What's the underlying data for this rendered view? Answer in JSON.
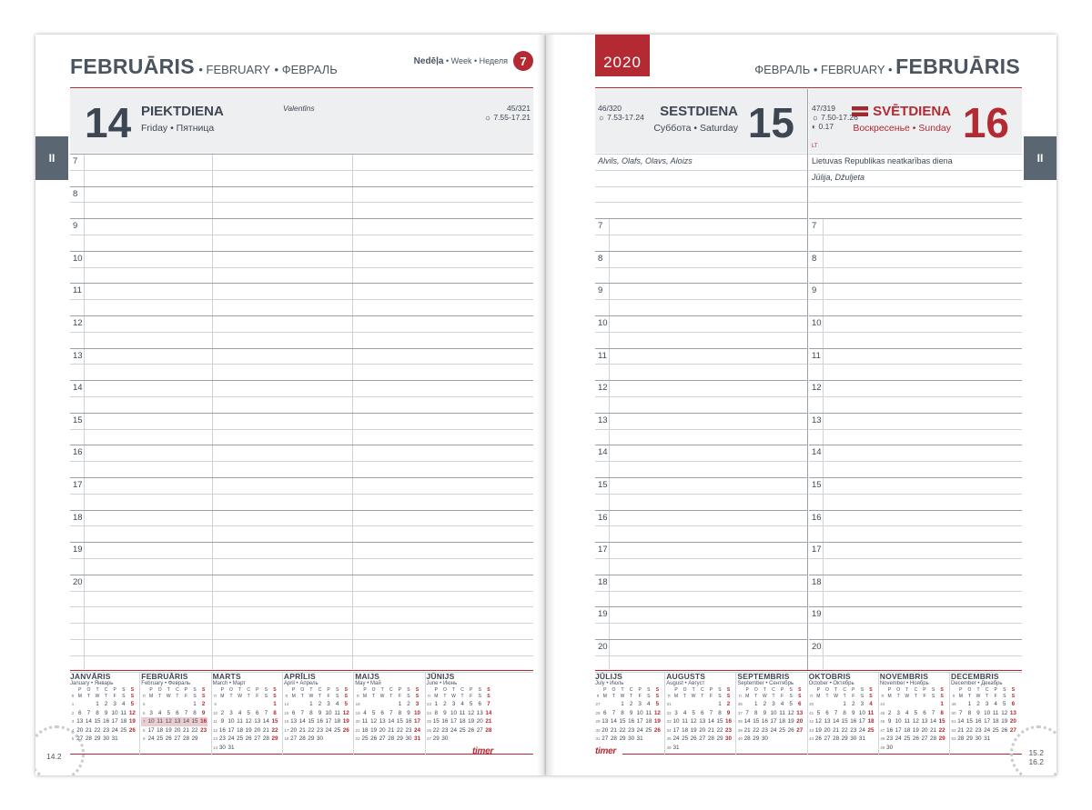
{
  "left": {
    "month_lv": "FEBRUĀRIS",
    "month_en": "FEBRUARY",
    "month_ru": "ФЕВРАЛЬ",
    "week_lv": "Nedēļa",
    "week_en": "Week",
    "week_ru": "Неделя",
    "week_num": "7",
    "tab": "II",
    "day": {
      "number": "14",
      "name": "PIEKTDIENA",
      "sub": "Friday • Пятница",
      "nameday": "Valentīns",
      "count": "45/321",
      "sun": "7.55-17.21"
    },
    "hours": [
      "7",
      "8",
      "9",
      "10",
      "11",
      "12",
      "13",
      "14",
      "15",
      "16",
      "17",
      "18",
      "19",
      "20"
    ],
    "page_label": "14.2"
  },
  "right": {
    "year": "2020",
    "month_ru": "ФЕВРАЛЬ",
    "month_en": "FEBRUARY",
    "month_lv": "FEBRUĀRIS",
    "tab": "II",
    "day1": {
      "count": "46/320",
      "sun": "7.53-17.24",
      "name": "SESTDIENA",
      "sub": "Суббота • Saturday",
      "number": "15",
      "nameday": "Alvils, Olafs, Olavs, Aloizs"
    },
    "day2": {
      "count": "47/319",
      "sun": "7.50-17.26",
      "moon": "0.17",
      "name": "SVĒTDIENA",
      "sub": "Воскресенье • Sunday",
      "number": "16",
      "country": "LT",
      "holiday": "Lietuvas Republikas neatkarības diena",
      "nameday": "Jūlija, Džuljeta"
    },
    "hours": [
      "7",
      "8",
      "9",
      "10",
      "11",
      "12",
      "13",
      "14",
      "15",
      "16",
      "17",
      "18",
      "19",
      "20"
    ],
    "page_label_1": "15.2",
    "page_label_2": "16.2"
  },
  "logo": "timer",
  "calendar": {
    "weekday_header": [
      "п",
      "о",
      "т",
      "с",
      "ч",
      "п",
      "с"
    ],
    "weekday_header_lv": [
      "M",
      "T",
      "W",
      "T",
      "F",
      "S",
      "S"
    ],
    "weekday_top": [
      "P",
      "O",
      "T",
      "C",
      "P",
      "S",
      "S"
    ],
    "months_left": [
      {
        "name": "JANVĀRIS",
        "sub": "January • Январь",
        "weeks": [
          [
            "1",
            "",
            "",
            "1",
            "2",
            "3",
            "4",
            "5"
          ],
          [
            "2",
            "6",
            "7",
            "8",
            "9",
            "10",
            "11",
            "12"
          ],
          [
            "3",
            "13",
            "14",
            "15",
            "16",
            "17",
            "18",
            "19"
          ],
          [
            "4",
            "20",
            "21",
            "22",
            "23",
            "24",
            "25",
            "26"
          ],
          [
            "5",
            "27",
            "28",
            "29",
            "30",
            "31",
            "",
            ""
          ]
        ]
      },
      {
        "name": "FEBRUĀRIS",
        "sub": "February • Февраль",
        "weeks": [
          [
            "5",
            "",
            "",
            "",
            "",
            "",
            "1",
            "2"
          ],
          [
            "6",
            "3",
            "4",
            "5",
            "6",
            "7",
            "8",
            "9"
          ],
          [
            "7",
            "10",
            "11",
            "12",
            "13",
            "14",
            "15",
            "16"
          ],
          [
            "8",
            "17",
            "18",
            "19",
            "20",
            "21",
            "22",
            "23"
          ],
          [
            "9",
            "24",
            "25",
            "26",
            "27",
            "28",
            "29",
            ""
          ]
        ]
      },
      {
        "name": "MARTS",
        "sub": "March • Март",
        "weeks": [
          [
            "9",
            "",
            "",
            "",
            "",
            "",
            "",
            "1"
          ],
          [
            "10",
            "2",
            "3",
            "4",
            "5",
            "6",
            "7",
            "8"
          ],
          [
            "11",
            "9",
            "10",
            "11",
            "12",
            "13",
            "14",
            "15"
          ],
          [
            "12",
            "16",
            "17",
            "18",
            "19",
            "20",
            "21",
            "22"
          ],
          [
            "13",
            "23",
            "24",
            "25",
            "26",
            "27",
            "28",
            "29"
          ],
          [
            "14",
            "30",
            "31",
            "",
            "",
            "",
            "",
            ""
          ]
        ]
      },
      {
        "name": "APRĪLIS",
        "sub": "April • Апрель",
        "weeks": [
          [
            "14",
            "",
            "",
            "1",
            "2",
            "3",
            "4",
            "5"
          ],
          [
            "15",
            "6",
            "7",
            "8",
            "9",
            "10",
            "11",
            "12"
          ],
          [
            "16",
            "13",
            "14",
            "15",
            "16",
            "17",
            "18",
            "19"
          ],
          [
            "17",
            "20",
            "21",
            "22",
            "23",
            "24",
            "25",
            "26"
          ],
          [
            "18",
            "27",
            "28",
            "29",
            "30",
            "",
            "",
            ""
          ]
        ]
      },
      {
        "name": "MAIJS",
        "sub": "May • Май",
        "weeks": [
          [
            "18",
            "",
            "",
            "",
            "",
            "1",
            "2",
            "3"
          ],
          [
            "19",
            "4",
            "5",
            "6",
            "7",
            "8",
            "9",
            "10"
          ],
          [
            "20",
            "11",
            "12",
            "13",
            "14",
            "15",
            "16",
            "17"
          ],
          [
            "21",
            "18",
            "19",
            "20",
            "21",
            "22",
            "23",
            "24"
          ],
          [
            "22",
            "25",
            "26",
            "27",
            "28",
            "29",
            "30",
            "31"
          ]
        ]
      },
      {
        "name": "JŪNIJS",
        "sub": "June • Июнь",
        "weeks": [
          [
            "23",
            "1",
            "2",
            "3",
            "4",
            "5",
            "6",
            "7"
          ],
          [
            "24",
            "8",
            "9",
            "10",
            "11",
            "12",
            "13",
            "14"
          ],
          [
            "25",
            "15",
            "16",
            "17",
            "18",
            "19",
            "20",
            "21"
          ],
          [
            "26",
            "22",
            "23",
            "24",
            "25",
            "26",
            "27",
            "28"
          ],
          [
            "27",
            "29",
            "30",
            "",
            "",
            "",
            "",
            ""
          ]
        ]
      }
    ],
    "months_right": [
      {
        "name": "JŪLIJS",
        "sub": "July • Июль",
        "weeks": [
          [
            "27",
            "",
            "",
            "1",
            "2",
            "3",
            "4",
            "5"
          ],
          [
            "28",
            "6",
            "7",
            "8",
            "9",
            "10",
            "11",
            "12"
          ],
          [
            "29",
            "13",
            "14",
            "15",
            "16",
            "17",
            "18",
            "19"
          ],
          [
            "30",
            "20",
            "21",
            "22",
            "23",
            "24",
            "25",
            "26"
          ],
          [
            "31",
            "27",
            "28",
            "29",
            "30",
            "31",
            "",
            ""
          ]
        ]
      },
      {
        "name": "AUGUSTS",
        "sub": "August • Август",
        "weeks": [
          [
            "31",
            "",
            "",
            "",
            "",
            "",
            "1",
            "2"
          ],
          [
            "32",
            "3",
            "4",
            "5",
            "6",
            "7",
            "8",
            "9"
          ],
          [
            "33",
            "10",
            "11",
            "12",
            "13",
            "14",
            "15",
            "16"
          ],
          [
            "34",
            "17",
            "18",
            "19",
            "20",
            "21",
            "22",
            "23"
          ],
          [
            "35",
            "24",
            "25",
            "26",
            "27",
            "28",
            "29",
            "30"
          ],
          [
            "36",
            "31",
            "",
            "",
            "",
            "",
            "",
            ""
          ]
        ]
      },
      {
        "name": "SEPTEMBRIS",
        "sub": "September • Сентябрь",
        "weeks": [
          [
            "36",
            "",
            "1",
            "2",
            "3",
            "4",
            "5",
            "6"
          ],
          [
            "37",
            "7",
            "8",
            "9",
            "10",
            "11",
            "12",
            "13"
          ],
          [
            "38",
            "14",
            "15",
            "16",
            "17",
            "18",
            "19",
            "20"
          ],
          [
            "39",
            "21",
            "22",
            "23",
            "24",
            "25",
            "26",
            "27"
          ],
          [
            "40",
            "28",
            "29",
            "30",
            "",
            "",
            "",
            ""
          ]
        ]
      },
      {
        "name": "OKTOBRIS",
        "sub": "October • Октябрь",
        "weeks": [
          [
            "40",
            "",
            "",
            "",
            "1",
            "2",
            "3",
            "4"
          ],
          [
            "41",
            "5",
            "6",
            "7",
            "8",
            "9",
            "10",
            "11"
          ],
          [
            "42",
            "12",
            "13",
            "14",
            "15",
            "16",
            "17",
            "18"
          ],
          [
            "43",
            "19",
            "20",
            "21",
            "22",
            "23",
            "24",
            "25"
          ],
          [
            "44",
            "26",
            "27",
            "28",
            "29",
            "30",
            "31",
            ""
          ]
        ]
      },
      {
        "name": "NOVEMBRIS",
        "sub": "November • Ноябрь",
        "weeks": [
          [
            "44",
            "",
            "",
            "",
            "",
            "",
            "",
            "1"
          ],
          [
            "45",
            "2",
            "3",
            "4",
            "5",
            "6",
            "7",
            "8"
          ],
          [
            "46",
            "9",
            "10",
            "11",
            "12",
            "13",
            "14",
            "15"
          ],
          [
            "47",
            "16",
            "17",
            "18",
            "19",
            "20",
            "21",
            "22"
          ],
          [
            "48",
            "23",
            "24",
            "25",
            "26",
            "27",
            "28",
            "29"
          ],
          [
            "49",
            "30",
            "",
            "",
            "",
            "",
            "",
            ""
          ]
        ]
      },
      {
        "name": "DECEMBRIS",
        "sub": "December • Декабрь",
        "weeks": [
          [
            "49",
            "",
            "1",
            "2",
            "3",
            "4",
            "5",
            "6"
          ],
          [
            "50",
            "7",
            "8",
            "9",
            "10",
            "11",
            "12",
            "13"
          ],
          [
            "51",
            "14",
            "15",
            "16",
            "17",
            "18",
            "19",
            "20"
          ],
          [
            "52",
            "21",
            "22",
            "23",
            "24",
            "25",
            "26",
            "27"
          ],
          [
            "53",
            "28",
            "29",
            "30",
            "31",
            "",
            "",
            ""
          ]
        ]
      }
    ]
  }
}
